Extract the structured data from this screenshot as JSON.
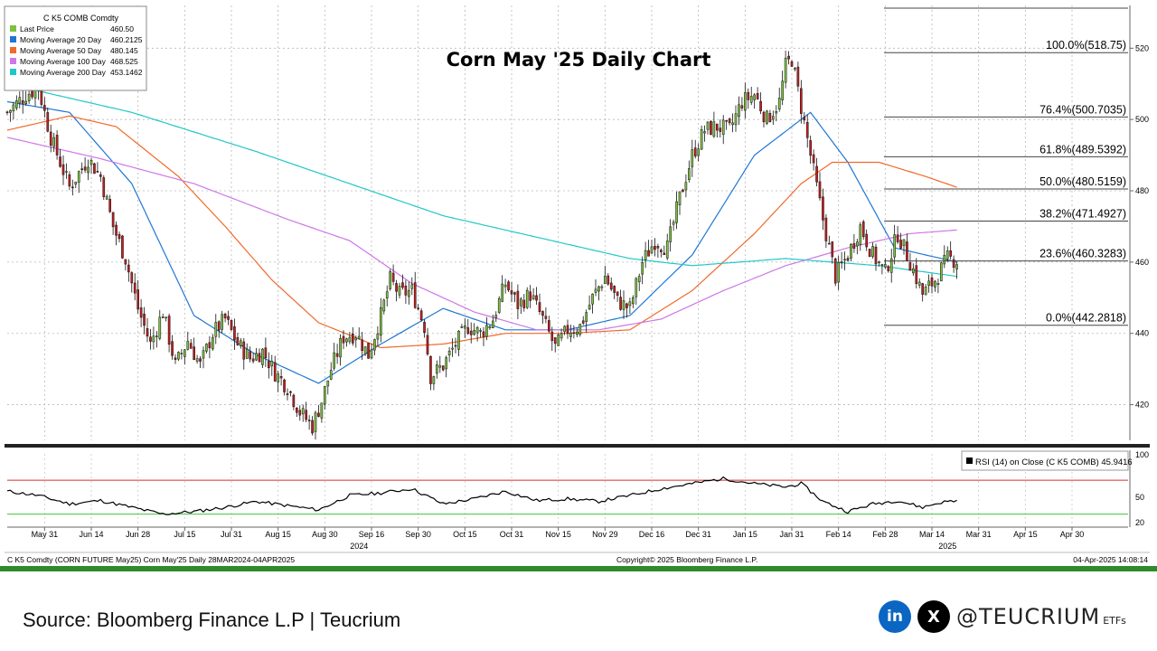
{
  "chart_data": {
    "type": "candlestick",
    "title": "Corn May '25 Daily Chart",
    "legend": {
      "header": "C K5 COMB Comdty",
      "entries": [
        {
          "name": "Last Price",
          "value": "460.50",
          "color": "#7dc141"
        },
        {
          "name": "Moving Average 20 Day",
          "value": "460.2125",
          "color": "#1f77d4"
        },
        {
          "name": "Moving Average 50 Day",
          "value": "480.145",
          "color": "#f06a2a"
        },
        {
          "name": "Moving Average 100 Day",
          "value": "468.525",
          "color": "#cf77e6"
        },
        {
          "name": "Moving Average 200 Day",
          "value": "453.1462",
          "color": "#20c7c7"
        }
      ]
    },
    "y_axis": {
      "ticks": [
        420,
        440,
        460,
        480,
        500,
        520
      ],
      "range": [
        410,
        532
      ],
      "side": "right"
    },
    "x_axis": {
      "ticks": [
        "May 31",
        "Jun 14",
        "Jun 28",
        "Jul 15",
        "Jul 31",
        "Aug 15",
        "Aug 30",
        "Sep 16",
        "Sep 30",
        "Oct 15",
        "Oct 31",
        "Nov 15",
        "Nov 29",
        "Dec 16",
        "Dec 31",
        "Jan 15",
        "Jan 31",
        "Feb 14",
        "Feb 28",
        "Mar 14",
        "Mar 31",
        "Apr 15",
        "Apr 30"
      ],
      "year_labels": [
        "2024",
        "2025"
      ]
    },
    "price_anchors": [
      [
        0,
        502
      ],
      [
        6,
        507
      ],
      [
        10,
        509
      ],
      [
        14,
        495
      ],
      [
        20,
        481
      ],
      [
        26,
        489
      ],
      [
        30,
        484
      ],
      [
        34,
        470
      ],
      [
        38,
        461
      ],
      [
        42,
        447
      ],
      [
        46,
        437
      ],
      [
        50,
        446
      ],
      [
        54,
        431
      ],
      [
        58,
        438
      ],
      [
        62,
        431
      ],
      [
        66,
        440
      ],
      [
        70,
        444
      ],
      [
        74,
        437
      ],
      [
        78,
        433
      ],
      [
        82,
        435
      ],
      [
        86,
        429
      ],
      [
        90,
        425
      ],
      [
        94,
        418
      ],
      [
        98,
        414
      ],
      [
        101,
        421
      ],
      [
        104,
        430
      ],
      [
        108,
        439
      ],
      [
        112,
        440
      ],
      [
        116,
        434
      ],
      [
        120,
        445
      ],
      [
        123,
        455
      ],
      [
        126,
        451
      ],
      [
        130,
        452
      ],
      [
        134,
        442
      ],
      [
        136,
        428
      ],
      [
        140,
        431
      ],
      [
        144,
        437
      ],
      [
        148,
        442
      ],
      [
        152,
        440
      ],
      [
        156,
        444
      ],
      [
        160,
        454
      ],
      [
        164,
        448
      ],
      [
        168,
        451
      ],
      [
        172,
        444
      ],
      [
        176,
        436
      ],
      [
        180,
        441
      ],
      [
        184,
        442
      ],
      [
        188,
        450
      ],
      [
        192,
        456
      ],
      [
        196,
        449
      ],
      [
        200,
        447
      ],
      [
        204,
        460
      ],
      [
        208,
        466
      ],
      [
        212,
        464
      ],
      [
        216,
        478
      ],
      [
        220,
        490
      ],
      [
        224,
        497
      ],
      [
        228,
        498
      ],
      [
        232,
        497
      ],
      [
        236,
        505
      ],
      [
        240,
        507
      ],
      [
        244,
        500
      ],
      [
        248,
        505
      ],
      [
        250,
        515
      ],
      [
        252,
        517
      ],
      [
        254,
        508
      ],
      [
        258,
        490
      ],
      [
        262,
        472
      ],
      [
        266,
        456
      ],
      [
        270,
        462
      ],
      [
        274,
        470
      ],
      [
        278,
        462
      ],
      [
        282,
        457
      ],
      [
        286,
        468
      ],
      [
        290,
        460
      ],
      [
        294,
        451
      ],
      [
        298,
        455
      ],
      [
        302,
        461
      ],
      [
        305,
        460.5
      ]
    ],
    "last_index": 305,
    "moving_averages": [
      {
        "name": "Moving Average 20 Day",
        "color": "#1f77d4",
        "points": [
          [
            0,
            505
          ],
          [
            20,
            502
          ],
          [
            40,
            482
          ],
          [
            60,
            445
          ],
          [
            80,
            434
          ],
          [
            100,
            426
          ],
          [
            120,
            437
          ],
          [
            140,
            447
          ],
          [
            160,
            441
          ],
          [
            180,
            441
          ],
          [
            200,
            445
          ],
          [
            220,
            462
          ],
          [
            240,
            490
          ],
          [
            258,
            502
          ],
          [
            270,
            488
          ],
          [
            285,
            464
          ],
          [
            305,
            460
          ]
        ]
      },
      {
        "name": "Moving Average 50 Day",
        "color": "#f06a2a",
        "points": [
          [
            0,
            497
          ],
          [
            20,
            501
          ],
          [
            35,
            498
          ],
          [
            55,
            484
          ],
          [
            70,
            470
          ],
          [
            85,
            455
          ],
          [
            100,
            443
          ],
          [
            120,
            436
          ],
          [
            140,
            437
          ],
          [
            160,
            440
          ],
          [
            180,
            440
          ],
          [
            200,
            441
          ],
          [
            220,
            452
          ],
          [
            240,
            468
          ],
          [
            255,
            482
          ],
          [
            265,
            488
          ],
          [
            280,
            488
          ],
          [
            295,
            484
          ],
          [
            305,
            481
          ]
        ]
      },
      {
        "name": "Moving Average 100 Day",
        "color": "#cf77e6",
        "points": [
          [
            0,
            495
          ],
          [
            30,
            489
          ],
          [
            60,
            482
          ],
          [
            90,
            472
          ],
          [
            110,
            466
          ],
          [
            130,
            454
          ],
          [
            150,
            446
          ],
          [
            170,
            441
          ],
          [
            190,
            441
          ],
          [
            210,
            444
          ],
          [
            230,
            452
          ],
          [
            250,
            459
          ],
          [
            270,
            464
          ],
          [
            290,
            468
          ],
          [
            305,
            469
          ]
        ]
      },
      {
        "name": "Moving Average 200 Day",
        "color": "#20c7c7",
        "points": [
          [
            0,
            510
          ],
          [
            40,
            502
          ],
          [
            80,
            491
          ],
          [
            110,
            482
          ],
          [
            140,
            473
          ],
          [
            170,
            467
          ],
          [
            200,
            461
          ],
          [
            220,
            459
          ],
          [
            250,
            461
          ],
          [
            280,
            459
          ],
          [
            305,
            456
          ]
        ]
      }
    ],
    "fibonacci": [
      {
        "pct": "100.0%",
        "value": 518.75,
        "label": "100.0%(518.75)"
      },
      {
        "pct": "76.4%",
        "value": 500.7035,
        "label": "76.4%(500.7035)"
      },
      {
        "pct": "61.8%",
        "value": 489.5392,
        "label": "61.8%(489.5392)"
      },
      {
        "pct": "50.0%",
        "value": 480.5159,
        "label": "50.0%(480.5159)"
      },
      {
        "pct": "38.2%",
        "value": 471.4927,
        "label": "38.2%(471.4927)"
      },
      {
        "pct": "23.6%",
        "value": 460.3283,
        "label": "23.6%(460.3283)"
      },
      {
        "pct": "0.0%",
        "value": 442.2818,
        "label": "0.0%(442.2818)"
      }
    ],
    "rsi": {
      "legend": "RSI (14)   on Close (C K5 COMB) 45.9416",
      "ticks": [
        20,
        50,
        100
      ],
      "overbought": 70,
      "oversold": 30,
      "points": [
        [
          0,
          57
        ],
        [
          10,
          52
        ],
        [
          20,
          42
        ],
        [
          30,
          46
        ],
        [
          40,
          38
        ],
        [
          50,
          30
        ],
        [
          60,
          33
        ],
        [
          70,
          38
        ],
        [
          80,
          45
        ],
        [
          90,
          40
        ],
        [
          100,
          35
        ],
        [
          110,
          52
        ],
        [
          120,
          55
        ],
        [
          130,
          60
        ],
        [
          140,
          42
        ],
        [
          150,
          48
        ],
        [
          160,
          57
        ],
        [
          170,
          46
        ],
        [
          180,
          48
        ],
        [
          190,
          45
        ],
        [
          200,
          52
        ],
        [
          210,
          60
        ],
        [
          220,
          66
        ],
        [
          230,
          72
        ],
        [
          240,
          66
        ],
        [
          250,
          62
        ],
        [
          255,
          66
        ],
        [
          262,
          45
        ],
        [
          270,
          33
        ],
        [
          278,
          42
        ],
        [
          286,
          46
        ],
        [
          294,
          38
        ],
        [
          300,
          44
        ],
        [
          305,
          46
        ]
      ]
    }
  },
  "footer": {
    "left": "C K5 Comdty (CORN FUTURE     May25) Corn May'25  Daily 28MAR2024-04APR2025",
    "center": "Copyright© 2025 Bloomberg Finance L.P.",
    "right": "04-Apr-2025 14:08:14"
  },
  "source": "Source: Bloomberg Finance L.P | Teucrium",
  "social": {
    "linkedin_icon": "in",
    "x_icon": "X",
    "handle": "@TEUCRIUM",
    "handle_suffix": "ETFs",
    "linkedin_color": "#0a66c2",
    "x_color": "#000000"
  }
}
